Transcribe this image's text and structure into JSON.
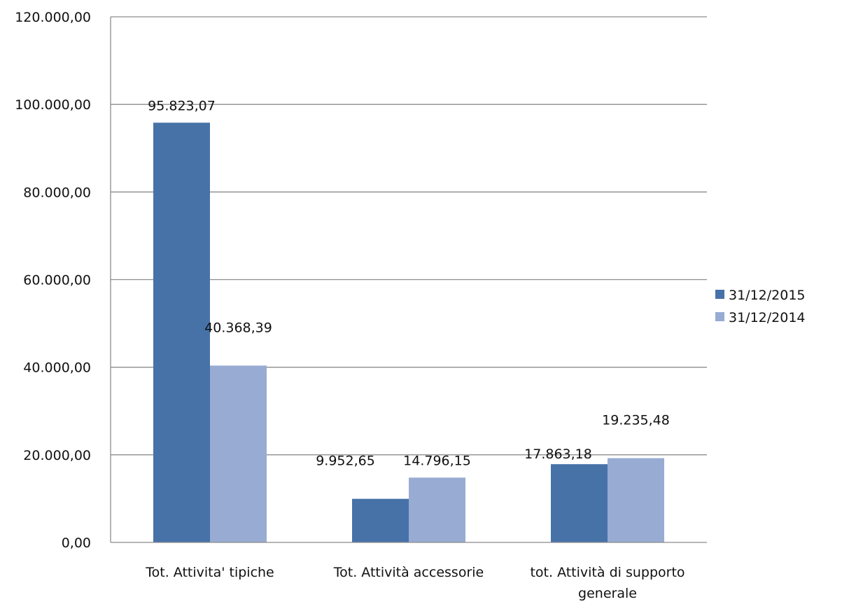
{
  "chart_data": {
    "type": "bar",
    "categories": [
      [
        "Tot. Attivita' tipiche"
      ],
      [
        "Tot. Attività accessorie"
      ],
      [
        "tot. Attività di supporto",
        "generale"
      ]
    ],
    "series": [
      {
        "name": "31/12/2015",
        "color": "#4672A8",
        "values": [
          95823.07,
          9952.65,
          17863.18
        ],
        "labels": [
          "95.823,07",
          "9.952,65",
          "17.863,18"
        ]
      },
      {
        "name": "31/12/2014",
        "color": "#98ABD3",
        "values": [
          40368.39,
          14796.15,
          19235.48
        ],
        "labels": [
          "40.368,39",
          "14.796,15",
          "19.235,48"
        ]
      }
    ],
    "y_ticks": [
      {
        "value": 0,
        "label": "0,00"
      },
      {
        "value": 20000,
        "label": "20.000,00"
      },
      {
        "value": 40000,
        "label": "40.000,00"
      },
      {
        "value": 60000,
        "label": "60.000,00"
      },
      {
        "value": 80000,
        "label": "80.000,00"
      },
      {
        "value": 100000,
        "label": "100.000,00"
      },
      {
        "value": 120000,
        "label": "120.000,00"
      }
    ],
    "ylim": [
      0,
      120000
    ],
    "grid": true,
    "legend_position": "right",
    "title": "",
    "xlabel": "",
    "ylabel": ""
  }
}
